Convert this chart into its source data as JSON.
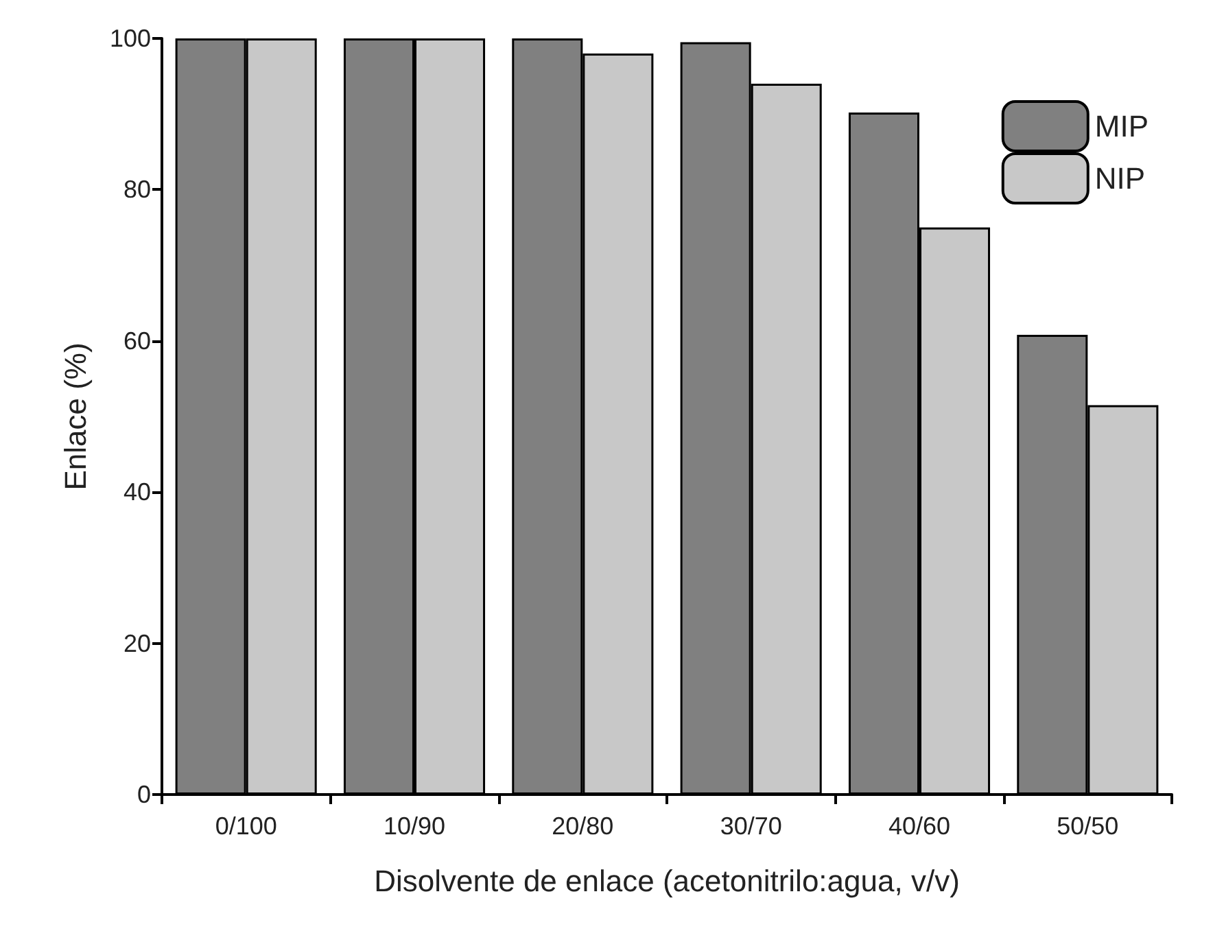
{
  "chart_data": {
    "type": "bar",
    "xlabel": "Disolvente de enlace (acetonitrilo:agua, v/v)",
    "ylabel": "Enlace (%)",
    "categories": [
      "0/100",
      "10/90",
      "20/80",
      "30/70",
      "40/60",
      "50/50"
    ],
    "series": [
      {
        "name": "MIP",
        "color": "#808080",
        "values": [
          100,
          100,
          100,
          99.5,
          90.2,
          60.8
        ]
      },
      {
        "name": "NIP",
        "color": "#c8c8c8",
        "values": [
          100,
          100,
          98,
          94,
          75,
          51.5
        ]
      }
    ],
    "ylim": [
      0,
      100
    ],
    "yticks": [
      0,
      20,
      40,
      60,
      80,
      100
    ],
    "grid": false,
    "legend": "top right"
  }
}
